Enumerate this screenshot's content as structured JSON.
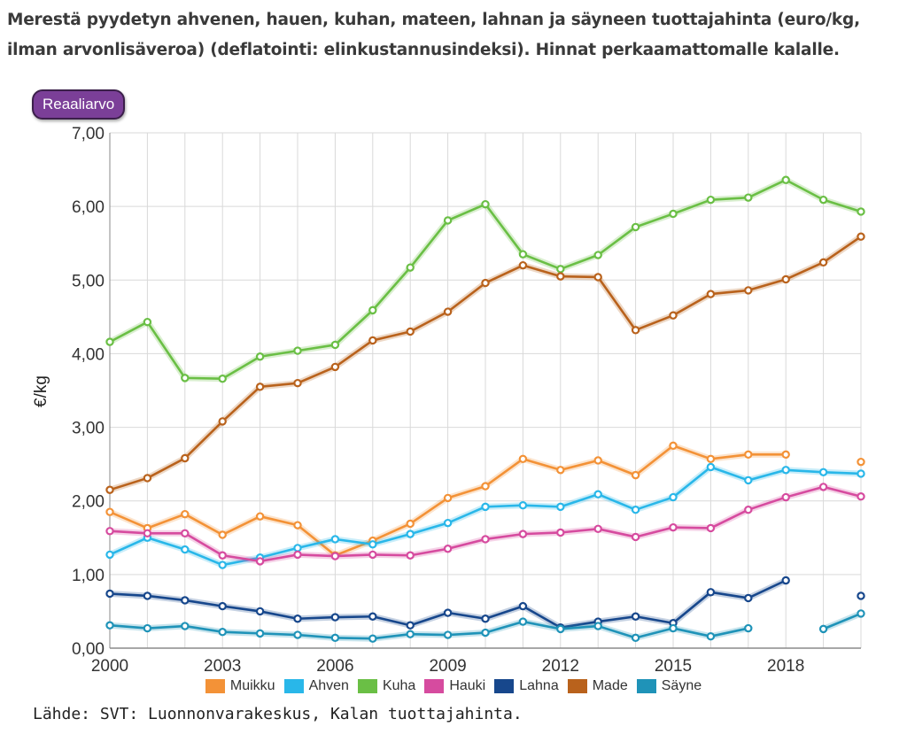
{
  "page": {
    "title": "Merestä pyydetyn ahvenen, hauen, kuhan, mateen, lahnan ja säyneen tuottajahinta (euro/kg, ilman arvonlisäveroa) (deflatointi: elinkustannusindeksi). Hinnat perkaamattomalle kalalle.",
    "mode_button": "Reaaliarvo",
    "source": "Lähde: SVT: Luonnonvarakeskus, Kalan tuottajahinta."
  },
  "chart_data": {
    "type": "line",
    "title": "",
    "xlabel": "",
    "ylabel": "€/kg",
    "xlim": [
      2000,
      2020
    ],
    "ylim": [
      0,
      7
    ],
    "x_ticks": [
      "2000",
      "2003",
      "2006",
      "2009",
      "2012",
      "2015",
      "2018"
    ],
    "y_ticks": [
      "0,00",
      "1,00",
      "2,00",
      "3,00",
      "4,00",
      "5,00",
      "6,00",
      "7,00"
    ],
    "grid": true,
    "legend_position": "bottom",
    "x": [
      2000,
      2001,
      2002,
      2003,
      2004,
      2005,
      2006,
      2007,
      2008,
      2009,
      2010,
      2011,
      2012,
      2013,
      2014,
      2015,
      2016,
      2017,
      2018,
      2019,
      2020
    ],
    "series": [
      {
        "name": "Muikku",
        "color": "#f39237",
        "values": [
          1.85,
          1.63,
          1.82,
          1.54,
          1.79,
          1.67,
          1.26,
          1.46,
          1.69,
          2.04,
          2.2,
          2.57,
          2.42,
          2.55,
          2.35,
          2.75,
          2.57,
          2.63,
          2.63,
          null,
          2.53
        ]
      },
      {
        "name": "Ahven",
        "color": "#29b7e9",
        "values": [
          1.27,
          1.5,
          1.34,
          1.13,
          1.23,
          1.36,
          1.48,
          1.41,
          1.55,
          1.7,
          1.92,
          1.94,
          1.92,
          2.09,
          1.88,
          2.05,
          2.46,
          2.28,
          2.42,
          2.39,
          2.37
        ]
      },
      {
        "name": "Kuha",
        "color": "#6abf45",
        "values": [
          4.16,
          4.43,
          3.67,
          3.66,
          3.96,
          4.04,
          4.12,
          4.59,
          5.17,
          5.81,
          6.03,
          5.35,
          5.15,
          5.34,
          5.72,
          5.9,
          6.09,
          6.12,
          6.36,
          6.09,
          5.93
        ]
      },
      {
        "name": "Hauki",
        "color": "#d64b9f",
        "values": [
          1.59,
          1.56,
          1.56,
          1.26,
          1.18,
          1.27,
          1.25,
          1.27,
          1.26,
          1.35,
          1.48,
          1.55,
          1.57,
          1.62,
          1.51,
          1.64,
          1.63,
          1.88,
          2.05,
          2.19,
          2.06
        ]
      },
      {
        "name": "Lahna",
        "color": "#17478c",
        "values": [
          0.74,
          0.71,
          0.65,
          0.57,
          0.5,
          0.4,
          0.42,
          0.43,
          0.31,
          0.48,
          0.4,
          0.57,
          0.28,
          0.36,
          0.43,
          0.34,
          0.76,
          0.68,
          0.92,
          null,
          0.71
        ]
      },
      {
        "name": "Made",
        "color": "#b9621c",
        "values": [
          2.15,
          2.31,
          2.58,
          3.08,
          3.55,
          3.6,
          3.82,
          4.18,
          4.3,
          4.57,
          4.96,
          5.2,
          5.05,
          5.04,
          4.32,
          4.52,
          4.81,
          4.86,
          5.01,
          5.24,
          5.59
        ]
      },
      {
        "name": "Säyne",
        "color": "#1f93b8",
        "values": [
          0.31,
          0.27,
          0.3,
          0.22,
          0.2,
          0.18,
          0.14,
          0.13,
          0.19,
          0.18,
          0.21,
          0.36,
          0.26,
          0.3,
          0.14,
          0.27,
          0.16,
          0.27,
          null,
          0.26,
          0.47
        ]
      }
    ]
  }
}
